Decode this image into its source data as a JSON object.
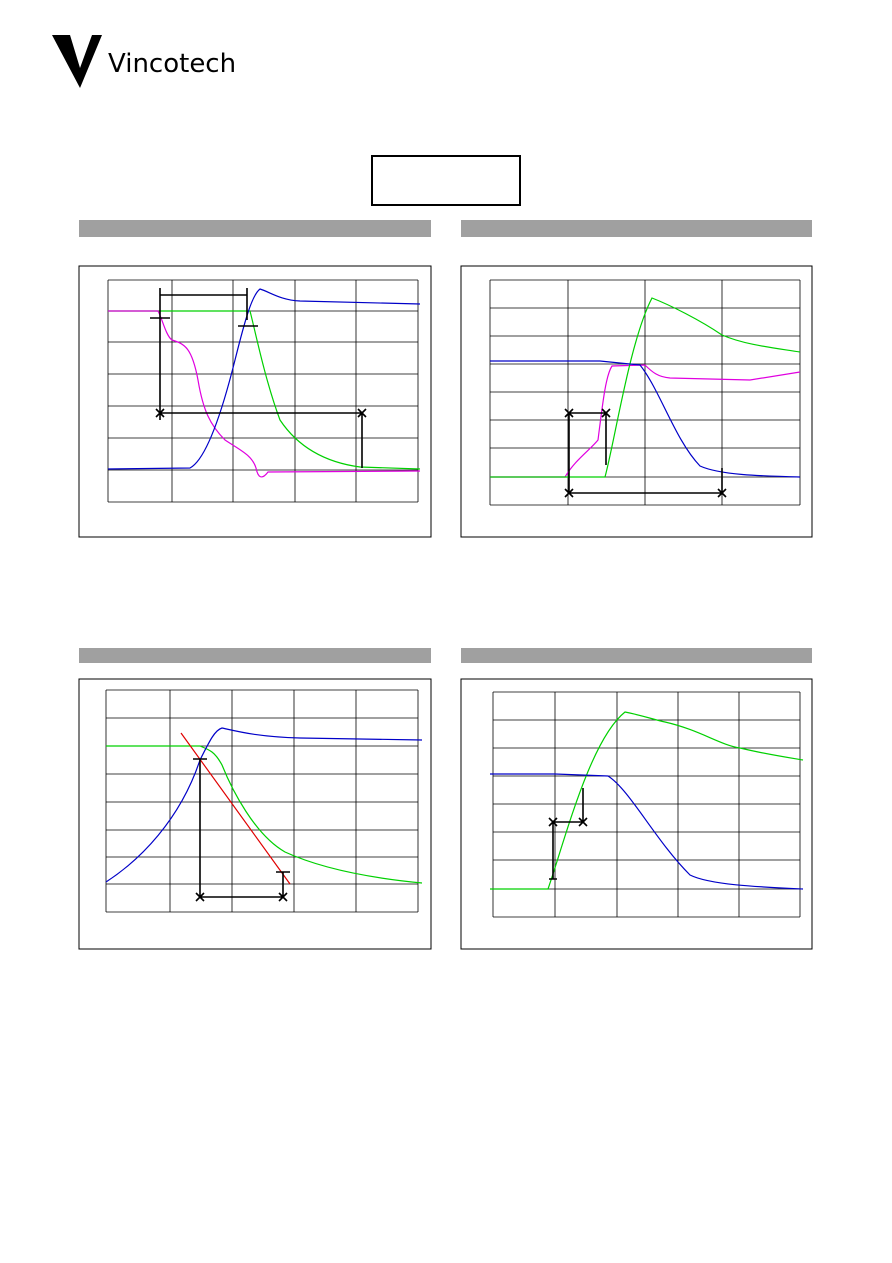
{
  "header": {
    "brand": "Vincotech"
  }
}
